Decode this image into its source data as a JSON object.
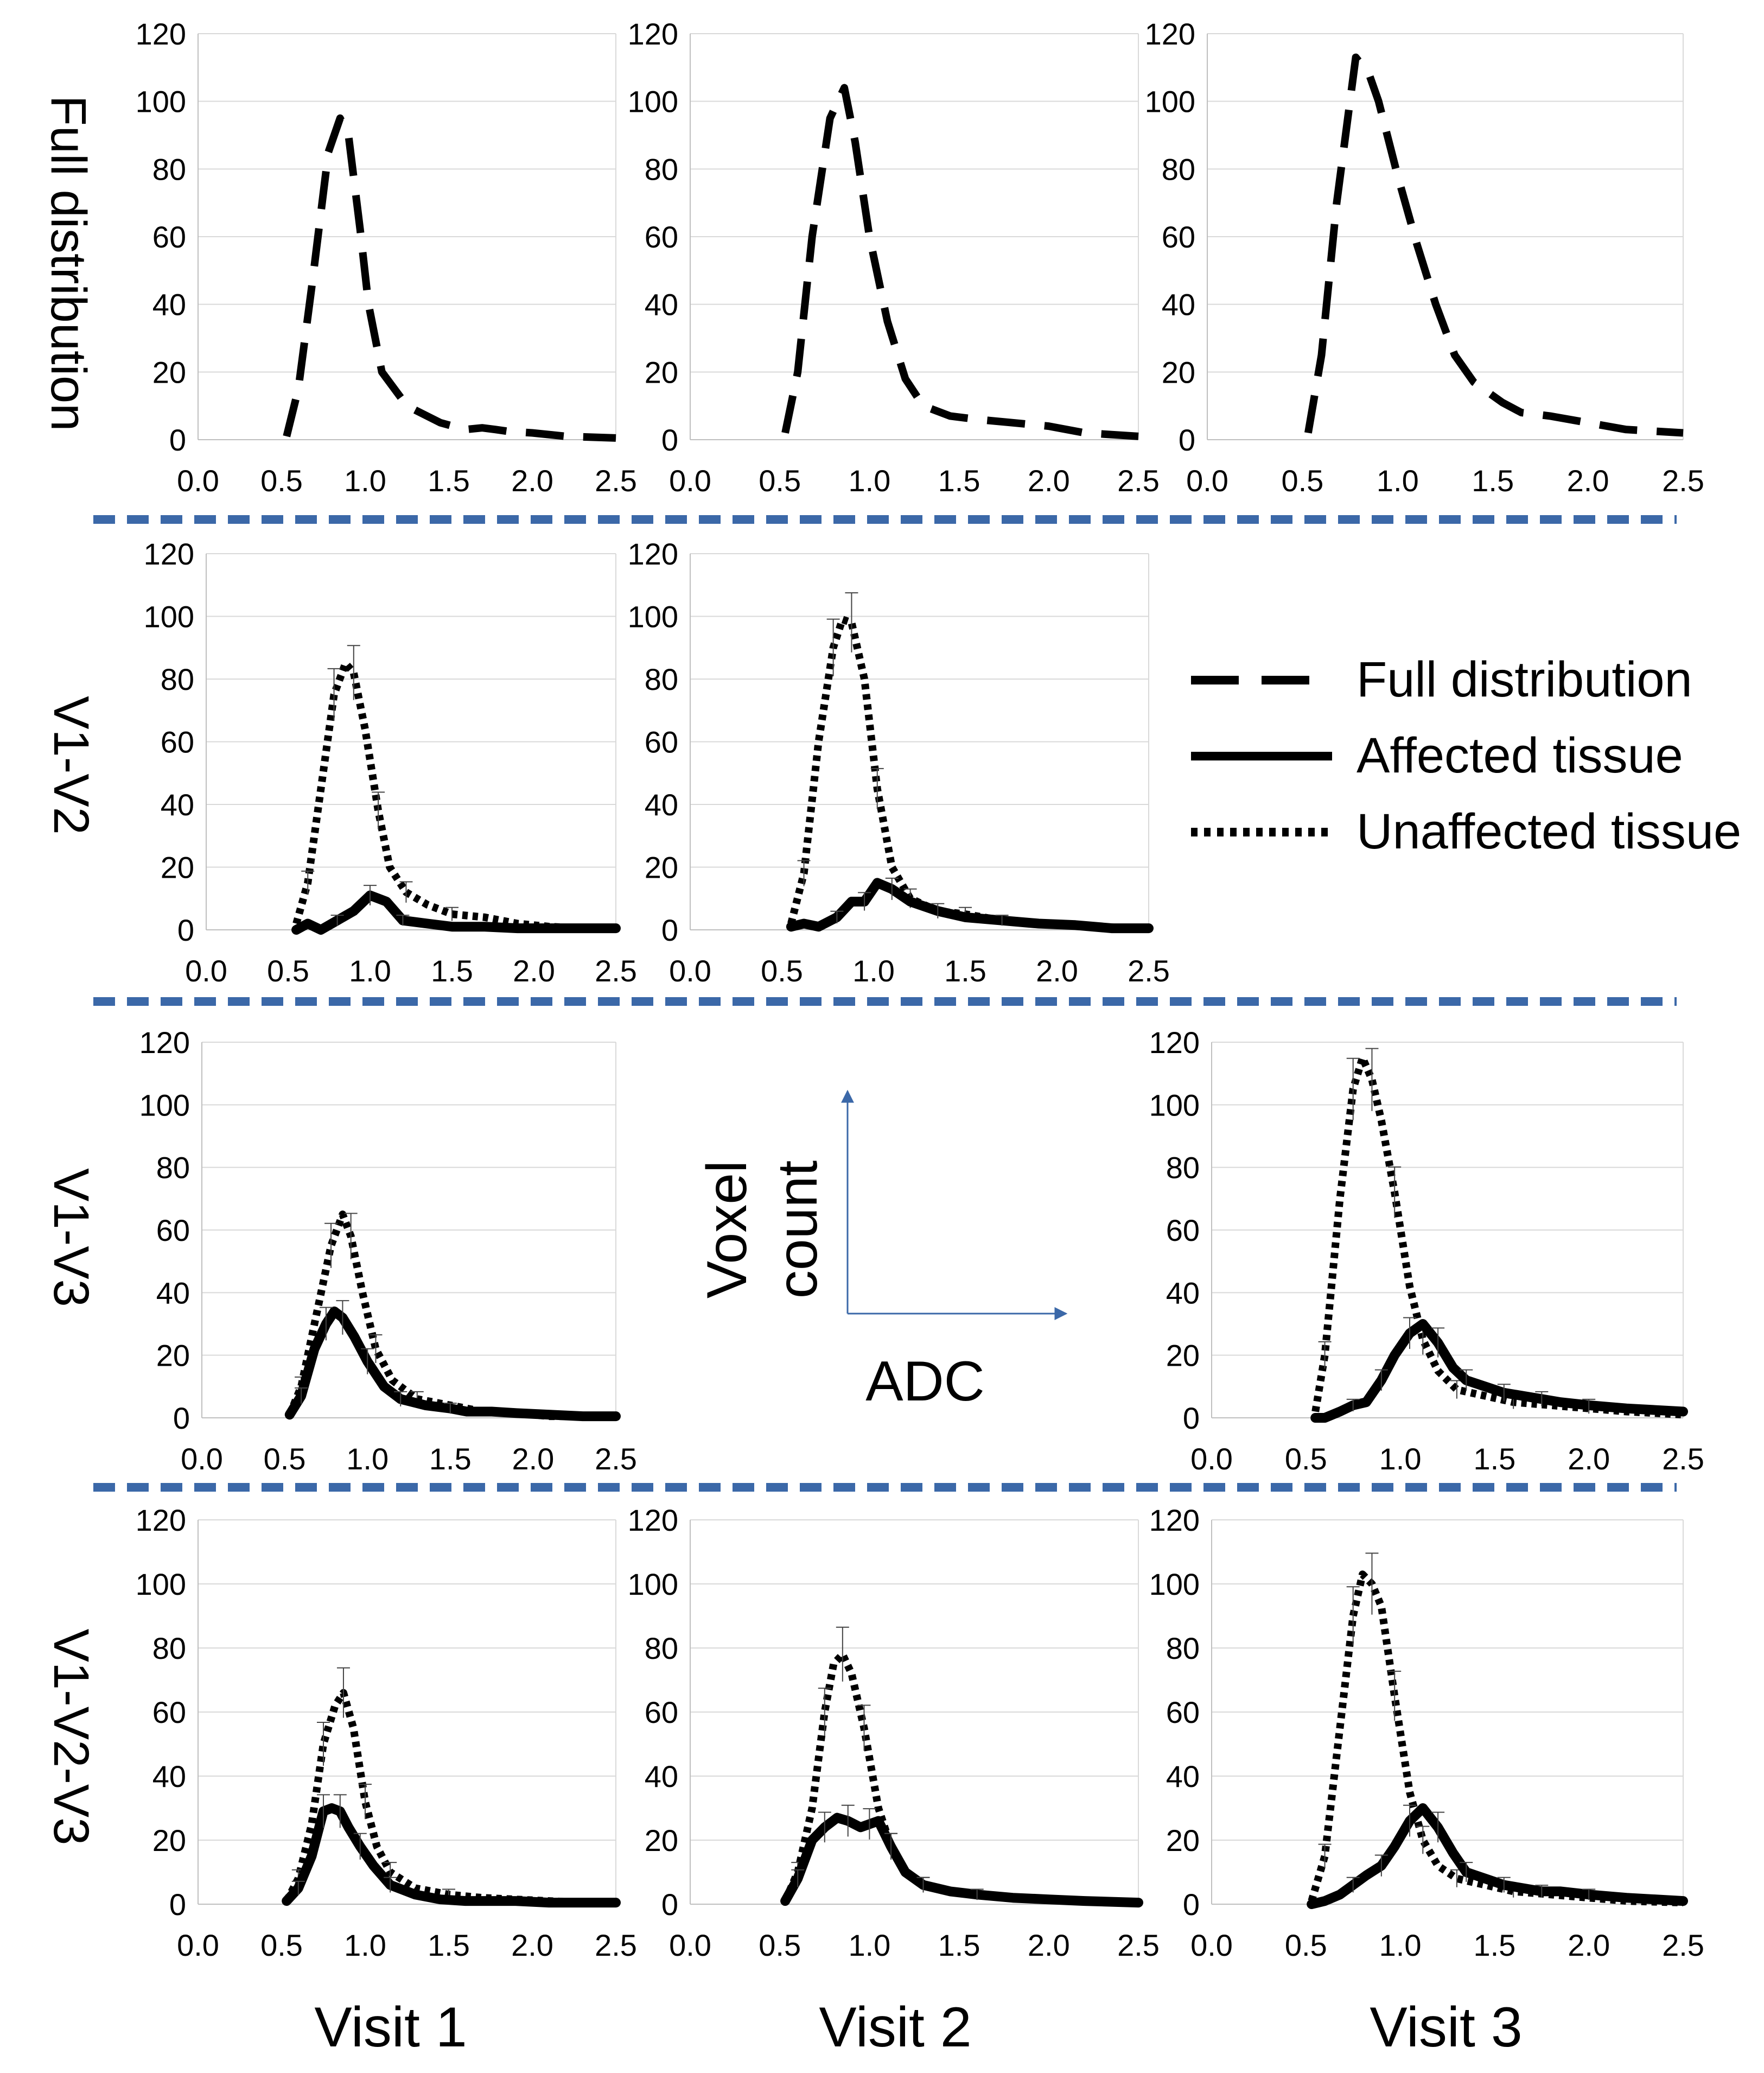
{
  "colors": {
    "separator": "#3b68a8",
    "grid": "#d9d9d9",
    "axis": "#bfbfbf",
    "line": "#000000",
    "arrow": "#3b68a8"
  },
  "row_labels": [
    "Full distribution",
    "V1-V2",
    "V1-V3",
    "V1-V2-V3"
  ],
  "column_labels": [
    "Visit 1",
    "Visit 2",
    "Visit 3"
  ],
  "legend": {
    "full": "Full distribution",
    "affected": "Affected tissue",
    "unaffected": "Unaffected tissue"
  },
  "axes_note": {
    "y_label_line1": "Voxel",
    "y_label_line2": "count",
    "x_label": "ADC"
  },
  "y_ticks": [
    "0",
    "20",
    "40",
    "60",
    "80",
    "100",
    "120"
  ],
  "x_ticks": [
    "0.0",
    "0.5",
    "1.0",
    "1.5",
    "2.0",
    "2.5"
  ],
  "chart_data": [
    {
      "id": "full-v1",
      "type": "line",
      "row": "Full distribution",
      "column": "Visit 1",
      "xlim": [
        0,
        2.5
      ],
      "ylim": [
        0,
        120
      ],
      "xlabel": "ADC",
      "ylabel": "Voxel count",
      "series": [
        {
          "name": "Full distribution",
          "style": "dashed",
          "x": [
            0.53,
            0.6,
            0.68,
            0.78,
            0.85,
            0.9,
            0.97,
            1.02,
            1.1,
            1.25,
            1.45,
            1.6,
            1.7,
            1.78,
            1.85,
            2.0,
            2.2,
            2.5
          ],
          "values": [
            1,
            15,
            45,
            85,
            95,
            90,
            62,
            40,
            20,
            10,
            5,
            3,
            3.5,
            3,
            2.5,
            2,
            1,
            0.5
          ]
        }
      ]
    },
    {
      "id": "full-v2",
      "type": "line",
      "row": "Full distribution",
      "column": "Visit 2",
      "xlim": [
        0,
        2.5
      ],
      "ylim": [
        0,
        120
      ],
      "xlabel": "ADC",
      "ylabel": "Voxel count",
      "series": [
        {
          "name": "Full distribution",
          "style": "dashed",
          "x": [
            0.53,
            0.6,
            0.68,
            0.78,
            0.86,
            0.92,
            1.0,
            1.1,
            1.2,
            1.3,
            1.45,
            1.6,
            1.8,
            2.0,
            2.2,
            2.5
          ],
          "values": [
            2,
            20,
            60,
            95,
            104,
            88,
            60,
            35,
            18,
            10,
            7,
            6,
            5,
            4,
            2,
            1
          ]
        }
      ]
    },
    {
      "id": "full-v3",
      "type": "line",
      "row": "Full distribution",
      "column": "Visit 3",
      "xlim": [
        0,
        2.5
      ],
      "ylim": [
        0,
        120
      ],
      "xlabel": "ADC",
      "ylabel": "Voxel count",
      "series": [
        {
          "name": "Full distribution",
          "style": "dashed",
          "x": [
            0.53,
            0.6,
            0.68,
            0.78,
            0.85,
            0.9,
            1.0,
            1.1,
            1.2,
            1.3,
            1.4,
            1.55,
            1.65,
            1.8,
            2.0,
            2.2,
            2.5
          ],
          "values": [
            2,
            25,
            70,
            113,
            108,
            100,
            78,
            58,
            40,
            25,
            17,
            11,
            8,
            7,
            5,
            3,
            2
          ]
        }
      ]
    },
    {
      "id": "v1v2-v1",
      "type": "line",
      "row": "V1-V2",
      "column": "Visit 1",
      "xlim": [
        0,
        2.5
      ],
      "ylim": [
        0,
        120
      ],
      "xlabel": "ADC",
      "ylabel": "Voxel count",
      "series": [
        {
          "name": "Unaffected tissue",
          "style": "dotted",
          "x": [
            0.55,
            0.62,
            0.7,
            0.78,
            0.85,
            0.9,
            0.97,
            1.05,
            1.12,
            1.22,
            1.35,
            1.5,
            1.7,
            1.9,
            2.1,
            2.3,
            2.5
          ],
          "values": [
            2,
            15,
            45,
            75,
            85,
            82,
            64,
            38,
            20,
            12,
            8,
            5,
            4,
            2,
            1,
            0.5,
            0.5
          ]
        },
        {
          "name": "Affected tissue",
          "style": "solid",
          "x": [
            0.55,
            0.62,
            0.7,
            0.8,
            0.9,
            1.0,
            1.1,
            1.2,
            1.35,
            1.5,
            1.7,
            1.9,
            2.1,
            2.3,
            2.5
          ],
          "values": [
            0,
            2,
            0,
            3,
            6,
            11,
            9,
            3,
            2,
            1,
            1,
            0.5,
            0.5,
            0.5,
            0.5
          ]
        }
      ]
    },
    {
      "id": "v1v2-v2",
      "type": "line",
      "row": "V1-V2",
      "column": "Visit 2",
      "xlim": [
        0,
        2.5
      ],
      "ylim": [
        0,
        120
      ],
      "xlabel": "ADC",
      "ylabel": "Voxel count",
      "series": [
        {
          "name": "Unaffected tissue",
          "style": "dotted",
          "x": [
            0.55,
            0.62,
            0.7,
            0.78,
            0.83,
            0.88,
            0.95,
            1.02,
            1.1,
            1.2,
            1.35,
            1.5,
            1.7,
            2.0,
            2.2,
            2.5
          ],
          "values": [
            2,
            18,
            60,
            90,
            99,
            98,
            80,
            45,
            20,
            10,
            6,
            5,
            3,
            1.5,
            1,
            0.5
          ]
        },
        {
          "name": "Affected tissue",
          "style": "solid",
          "x": [
            0.55,
            0.62,
            0.7,
            0.8,
            0.88,
            0.95,
            1.02,
            1.1,
            1.2,
            1.35,
            1.5,
            1.7,
            1.9,
            2.1,
            2.3,
            2.5
          ],
          "values": [
            1,
            2,
            1,
            4,
            9,
            9,
            15,
            13,
            9,
            6,
            4,
            3,
            2,
            1.5,
            0.5,
            0.5
          ]
        }
      ]
    },
    {
      "id": "v1v3-v1",
      "type": "line",
      "row": "V1-V3",
      "column": "Visit 1",
      "xlim": [
        0,
        2.5
      ],
      "ylim": [
        0,
        120
      ],
      "xlabel": "ADC",
      "ylabel": "Voxel count",
      "series": [
        {
          "name": "Unaffected tissue",
          "style": "dotted",
          "x": [
            0.53,
            0.6,
            0.68,
            0.78,
            0.85,
            0.9,
            0.97,
            1.05,
            1.15,
            1.3,
            1.5,
            1.7,
            1.9,
            2.1,
            2.3,
            2.5
          ],
          "values": [
            1,
            10,
            30,
            55,
            65,
            58,
            40,
            22,
            12,
            6,
            4,
            2,
            1.5,
            0.5,
            0.5,
            0.5
          ]
        },
        {
          "name": "Affected tissue",
          "style": "solid",
          "x": [
            0.53,
            0.6,
            0.68,
            0.75,
            0.8,
            0.85,
            0.92,
            1.0,
            1.1,
            1.2,
            1.35,
            1.5,
            1.6,
            1.75,
            1.9,
            2.1,
            2.3,
            2.5
          ],
          "values": [
            1,
            7,
            22,
            30,
            34,
            32,
            26,
            18,
            10,
            6,
            4,
            3,
            2,
            2,
            1.5,
            1,
            0.5,
            0.5
          ]
        }
      ]
    },
    {
      "id": "v1v3-v3",
      "type": "line",
      "row": "V1-V3",
      "column": "Visit 3",
      "xlim": [
        0,
        2.5
      ],
      "ylim": [
        0,
        120
      ],
      "xlabel": "ADC",
      "ylabel": "Voxel count",
      "series": [
        {
          "name": "Unaffected tissue",
          "style": "dotted",
          "x": [
            0.55,
            0.6,
            0.68,
            0.75,
            0.8,
            0.85,
            0.9,
            0.97,
            1.05,
            1.12,
            1.2,
            1.3,
            1.45,
            1.6,
            1.8,
            2.0,
            2.2,
            2.5
          ],
          "values": [
            2,
            20,
            70,
            105,
            115,
            108,
            95,
            72,
            42,
            25,
            15,
            9,
            7,
            5,
            4,
            3,
            2,
            1
          ]
        },
        {
          "name": "Affected tissue",
          "style": "solid",
          "x": [
            0.55,
            0.6,
            0.68,
            0.75,
            0.82,
            0.9,
            0.97,
            1.05,
            1.12,
            1.2,
            1.28,
            1.35,
            1.45,
            1.55,
            1.65,
            1.75,
            1.85,
            2.0,
            2.2,
            2.5
          ],
          "values": [
            0,
            0,
            2,
            4,
            5,
            12,
            20,
            27,
            30,
            24,
            16,
            12,
            10,
            8,
            7,
            6,
            5,
            4,
            3,
            2
          ]
        }
      ]
    },
    {
      "id": "v1v2v3-v1",
      "type": "line",
      "row": "V1-V2-V3",
      "column": "Visit 1",
      "xlim": [
        0,
        2.5
      ],
      "ylim": [
        0,
        120
      ],
      "xlabel": "ADC",
      "ylabel": "Voxel count",
      "series": [
        {
          "name": "Unaffected tissue",
          "style": "dotted",
          "x": [
            0.53,
            0.6,
            0.68,
            0.75,
            0.82,
            0.87,
            0.93,
            1.0,
            1.07,
            1.15,
            1.3,
            1.5,
            1.7,
            1.9,
            2.1,
            2.3,
            2.5
          ],
          "values": [
            1,
            8,
            25,
            50,
            62,
            66,
            55,
            32,
            18,
            10,
            5,
            3,
            2,
            1.5,
            1,
            0.5,
            0.5
          ]
        },
        {
          "name": "Affected tissue",
          "style": "solid",
          "x": [
            0.53,
            0.6,
            0.68,
            0.75,
            0.8,
            0.85,
            0.9,
            0.97,
            1.05,
            1.15,
            1.3,
            1.45,
            1.6,
            1.75,
            1.9,
            2.1,
            2.3,
            2.5
          ],
          "values": [
            1,
            5,
            15,
            29,
            30,
            29,
            24,
            18,
            12,
            6,
            3,
            1.5,
            1,
            1,
            1,
            0.5,
            0.5,
            0.5
          ]
        }
      ]
    },
    {
      "id": "v1v2v3-v2",
      "type": "line",
      "row": "V1-V2-V3",
      "column": "Visit 2",
      "xlim": [
        0,
        2.5
      ],
      "ylim": [
        0,
        120
      ],
      "xlabel": "ADC",
      "ylabel": "Voxel count",
      "series": [
        {
          "name": "Unaffected tissue",
          "style": "dotted",
          "x": [
            0.53,
            0.6,
            0.68,
            0.75,
            0.8,
            0.85,
            0.9,
            0.97,
            1.05,
            1.12,
            1.2,
            1.3,
            1.45,
            1.6,
            1.8,
            2.0,
            2.2,
            2.5
          ],
          "values": [
            1,
            10,
            30,
            60,
            75,
            78,
            72,
            55,
            30,
            18,
            10,
            6,
            4,
            3,
            2,
            1.5,
            1,
            0.5
          ]
        },
        {
          "name": "Affected tissue",
          "style": "solid",
          "x": [
            0.53,
            0.6,
            0.68,
            0.75,
            0.82,
            0.88,
            0.95,
            1.0,
            1.05,
            1.12,
            1.2,
            1.3,
            1.45,
            1.6,
            1.8,
            2.0,
            2.2,
            2.5
          ],
          "values": [
            1,
            8,
            20,
            24,
            27,
            26,
            24,
            25,
            26,
            18,
            10,
            6,
            4,
            3,
            2,
            1.5,
            1,
            0.5
          ]
        }
      ]
    },
    {
      "id": "v1v2v3-v3",
      "type": "line",
      "row": "V1-V2-V3",
      "column": "Visit 3",
      "xlim": [
        0,
        2.5
      ],
      "ylim": [
        0,
        120
      ],
      "xlabel": "ADC",
      "ylabel": "Voxel count",
      "series": [
        {
          "name": "Unaffected tissue",
          "style": "dotted",
          "x": [
            0.53,
            0.6,
            0.68,
            0.75,
            0.8,
            0.85,
            0.9,
            0.97,
            1.05,
            1.12,
            1.2,
            1.3,
            1.45,
            1.6,
            1.8,
            2.0,
            2.2,
            2.5
          ],
          "values": [
            1,
            15,
            55,
            90,
            103,
            100,
            93,
            65,
            35,
            20,
            12,
            8,
            6,
            4,
            3,
            2,
            1,
            0.5
          ]
        },
        {
          "name": "Affected tissue",
          "style": "solid",
          "x": [
            0.53,
            0.6,
            0.68,
            0.75,
            0.82,
            0.9,
            0.97,
            1.05,
            1.12,
            1.2,
            1.28,
            1.35,
            1.45,
            1.55,
            1.65,
            1.75,
            1.85,
            2.0,
            2.2,
            2.5
          ],
          "values": [
            0,
            1,
            3,
            6,
            9,
            12,
            18,
            26,
            30,
            24,
            16,
            10,
            8,
            6,
            5,
            4,
            4,
            3,
            2,
            1
          ]
        }
      ]
    }
  ]
}
